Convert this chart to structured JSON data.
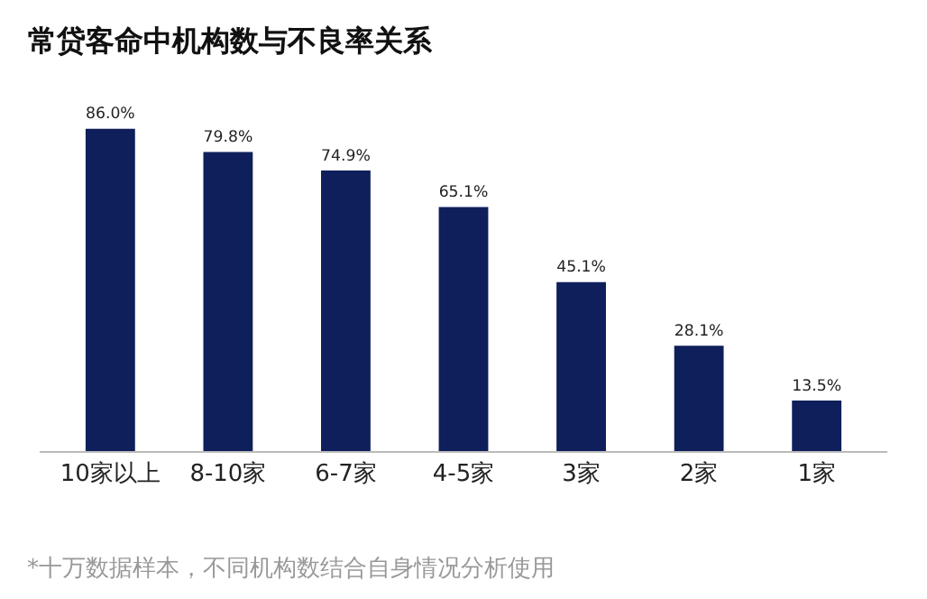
{
  "chart_data": {
    "type": "bar",
    "title": "常贷客命中机构数与不良率关系",
    "categories": [
      "10家以上",
      "8-10家",
      "6-7家",
      "4-5家",
      "3家",
      "2家",
      "1家"
    ],
    "values": [
      86.0,
      79.8,
      74.9,
      65.1,
      45.1,
      28.1,
      13.5
    ],
    "value_labels": [
      "86.0%",
      "79.8%",
      "74.9%",
      "65.1%",
      "45.1%",
      "28.1%",
      "13.5%"
    ],
    "color": "#0e1f5b",
    "annotations": [
      "*十万数据样本，不同机构数结合自身情况分析使用"
    ]
  }
}
